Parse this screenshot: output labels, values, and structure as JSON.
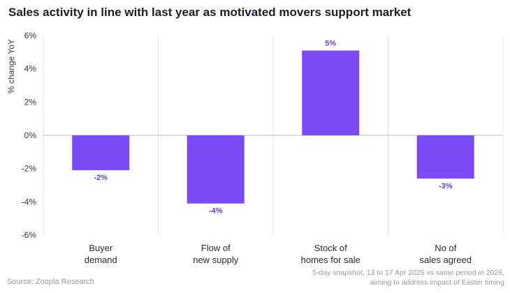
{
  "chart_data": {
    "type": "bar",
    "title": "Sales activity in line with last year as motivated movers support market",
    "ylabel": "% change YoY",
    "ylim": [
      -6,
      6
    ],
    "yticks": [
      6,
      4,
      2,
      0,
      -2,
      -4,
      -6
    ],
    "ytick_labels": [
      "6%",
      "4%",
      "2%",
      "0%",
      "-2%",
      "-4%",
      "-6%"
    ],
    "categories": [
      [
        "Buyer",
        "demand"
      ],
      [
        "Flow of",
        "new supply"
      ],
      [
        "Stock of",
        "homes for sale"
      ],
      [
        "No of",
        "sales agreed"
      ]
    ],
    "values": [
      -2.1,
      -4.1,
      5.1,
      -2.6
    ],
    "data_labels": [
      "-2%",
      "-4%",
      "5%",
      "-3%"
    ],
    "bar_color": "#7b4cf5",
    "label_color": "#6a3de8",
    "grid": false,
    "legend": "none"
  },
  "footer": {
    "source": "Source: Zoopla Research",
    "note_line1": "5-day snapshot, 13 to 17 Apr 2025 vs same period in 2026,",
    "note_line2": "aiming to address impact of Easter timing"
  }
}
